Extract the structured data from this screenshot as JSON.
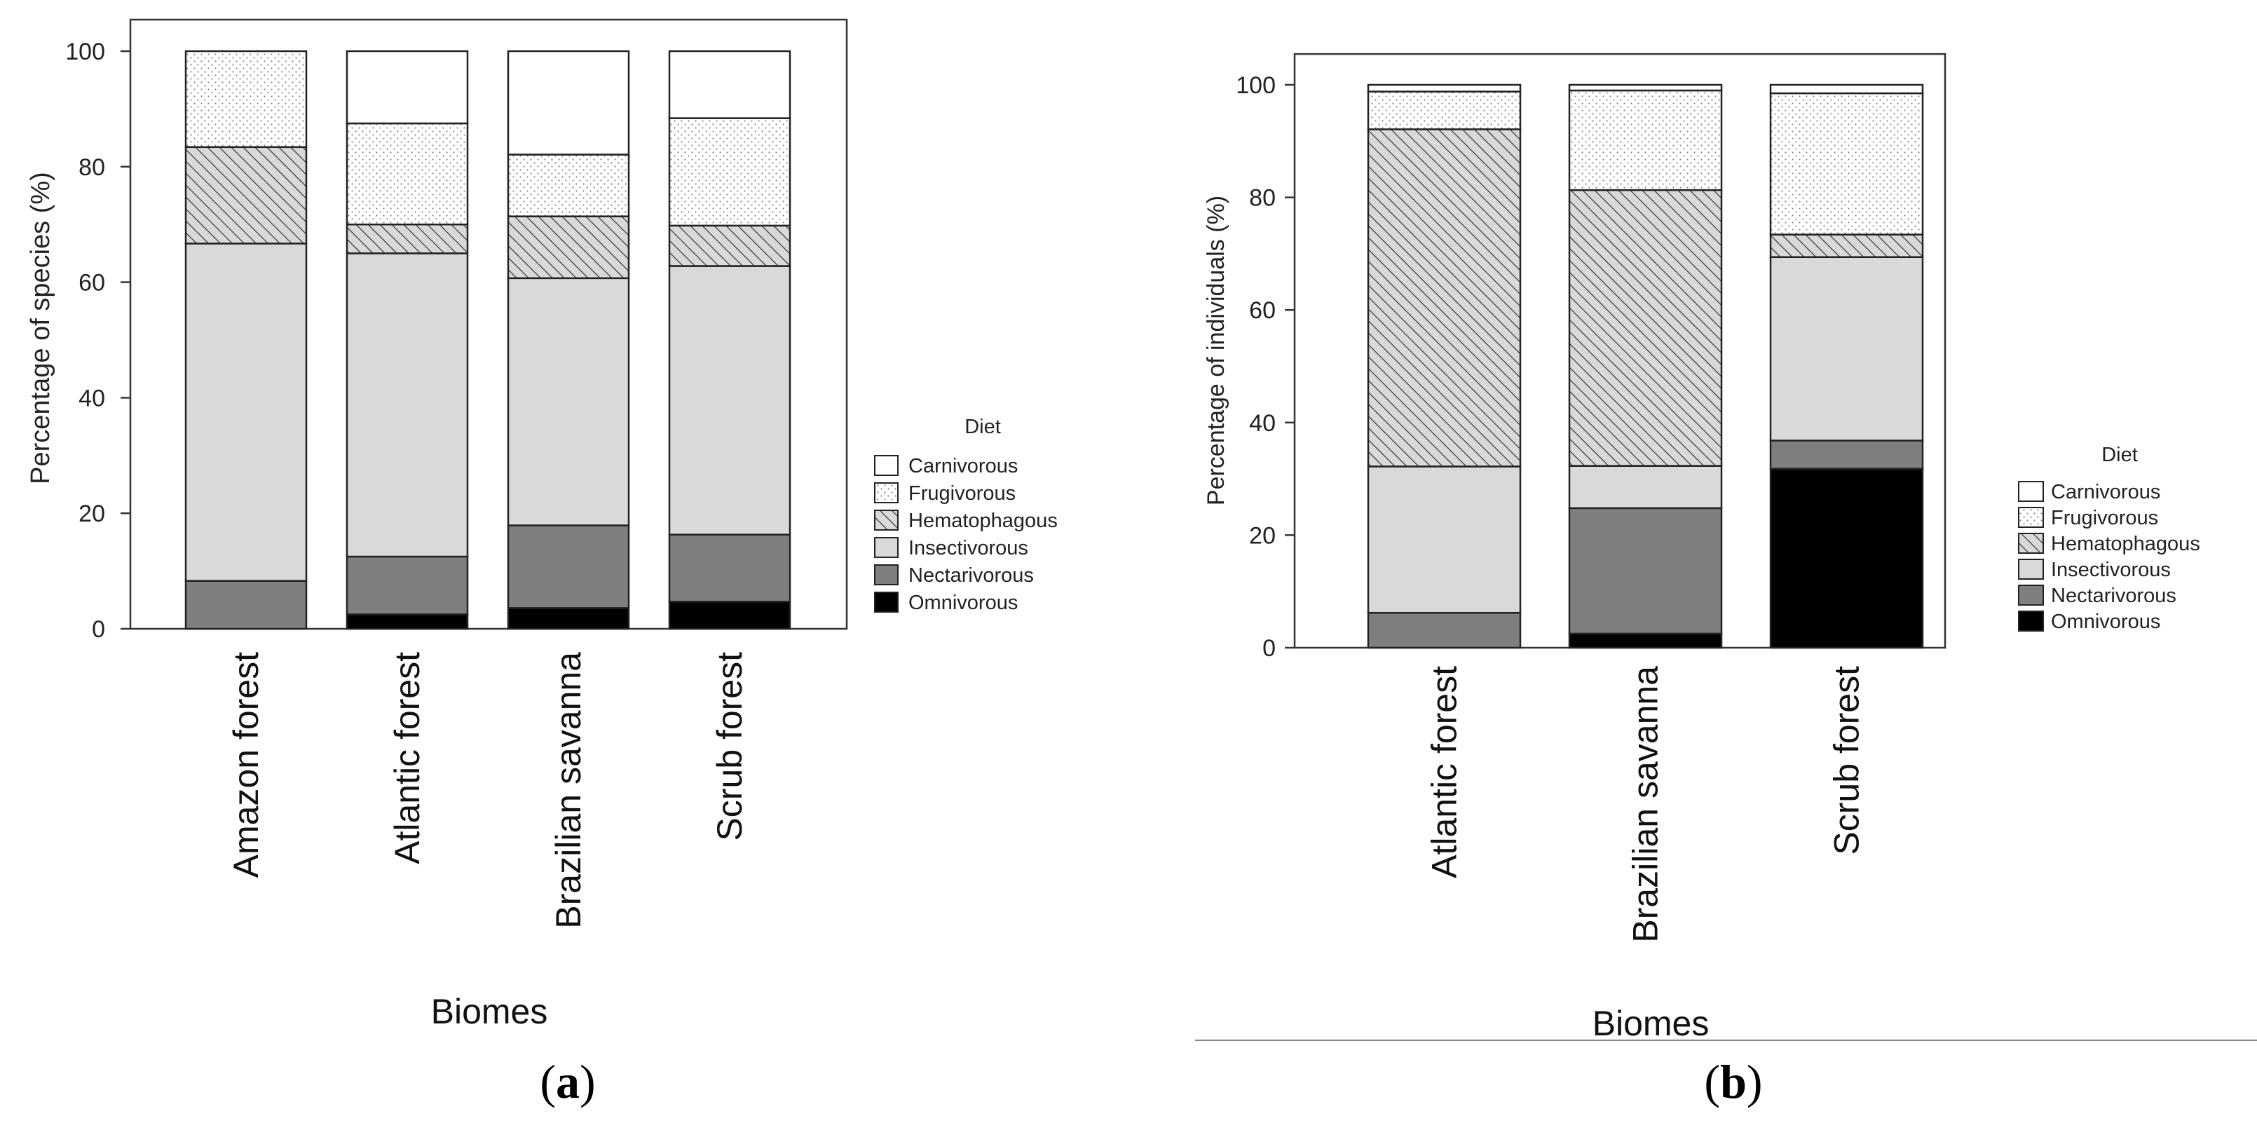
{
  "chart_data": [
    {
      "panel_label_open": "(",
      "panel_letter": "a",
      "panel_label_close": ")",
      "type": "bar",
      "stacked": true,
      "percent": true,
      "xlabel": "Biomes",
      "ylabel": "Percentage of species (%)",
      "ylim": [
        0,
        100
      ],
      "yticks": [
        0,
        20,
        40,
        60,
        80,
        100
      ],
      "categories": [
        "Amazon forest",
        "Atlantic forest",
        "Brazilian savanna",
        "Scrub forest"
      ],
      "legend_title": "Diet",
      "legend_position": "right",
      "series": [
        {
          "name": "Omnivorous",
          "fill": "#000000",
          "pattern": "solid",
          "values": [
            0,
            2.5,
            3.6,
            4.7
          ]
        },
        {
          "name": "Nectarivorous",
          "fill": "#7f7f7f",
          "pattern": "solid",
          "values": [
            8.3,
            10.0,
            14.3,
            11.6
          ]
        },
        {
          "name": "Insectivorous",
          "fill": "#d9d9d9",
          "pattern": "solid",
          "values": [
            58.4,
            52.5,
            42.8,
            46.5
          ]
        },
        {
          "name": "Hematophagous",
          "fill": "#d9d9d9",
          "pattern": "hatch",
          "values": [
            16.7,
            5.0,
            10.7,
            7.0
          ]
        },
        {
          "name": "Frugivorous",
          "fill": "#ffffff",
          "pattern": "dots",
          "values": [
            16.6,
            17.5,
            10.7,
            18.6
          ]
        },
        {
          "name": "Carnivorous",
          "fill": "#ffffff",
          "pattern": "solid",
          "values": [
            0,
            12.5,
            17.9,
            11.6
          ]
        }
      ]
    },
    {
      "panel_label_open": "(",
      "panel_letter": "b",
      "panel_label_close": ")",
      "type": "bar",
      "stacked": true,
      "percent": true,
      "xlabel": "Biomes",
      "ylabel": "Percentage of individuals (%)",
      "ylim": [
        0,
        100
      ],
      "yticks": [
        0,
        20,
        40,
        60,
        80,
        100
      ],
      "categories": [
        "Atlantic forest",
        "Brazilian savanna",
        "Scrub forest"
      ],
      "legend_title": "Diet",
      "legend_position": "right",
      "series": [
        {
          "name": "Omnivorous",
          "fill": "#000000",
          "pattern": "solid",
          "values": [
            0,
            2.5,
            31.8
          ]
        },
        {
          "name": "Nectarivorous",
          "fill": "#7f7f7f",
          "pattern": "solid",
          "values": [
            6.2,
            22.3,
            5.0
          ]
        },
        {
          "name": "Insectivorous",
          "fill": "#d9d9d9",
          "pattern": "solid",
          "values": [
            26.0,
            7.5,
            32.6
          ]
        },
        {
          "name": "Hematophagous",
          "fill": "#d9d9d9",
          "pattern": "hatch",
          "values": [
            59.9,
            49.0,
            4.0
          ]
        },
        {
          "name": "Frugivorous",
          "fill": "#ffffff",
          "pattern": "dots",
          "values": [
            6.7,
            17.7,
            25.1
          ]
        },
        {
          "name": "Carnivorous",
          "fill": "#ffffff",
          "pattern": "solid",
          "values": [
            1.2,
            1.0,
            1.5
          ]
        }
      ]
    }
  ]
}
